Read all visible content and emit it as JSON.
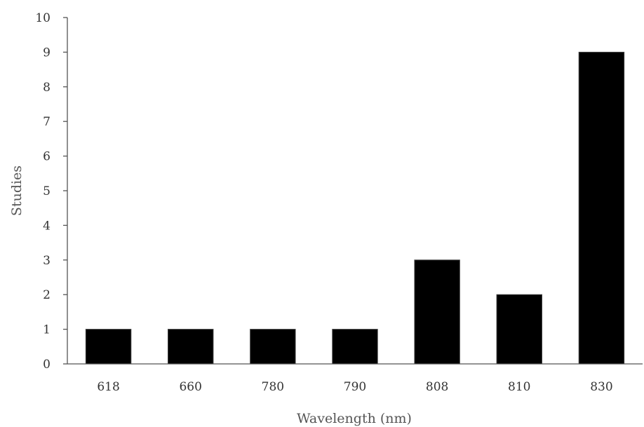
{
  "chart_data": {
    "type": "bar",
    "categories": [
      "618",
      "660",
      "780",
      "790",
      "808",
      "810",
      "830"
    ],
    "values": [
      1,
      1,
      1,
      1,
      3,
      2,
      9
    ],
    "title": "",
    "xlabel": "Wavelength (nm)",
    "ylabel": "Studies",
    "ylim": [
      0,
      10
    ],
    "yticks": [
      0,
      1,
      2,
      3,
      4,
      5,
      6,
      7,
      8,
      9,
      10
    ],
    "grid": false,
    "legend": "none",
    "colors": {
      "bar": "#000000",
      "axis": "#555555",
      "text": "#333333"
    }
  }
}
